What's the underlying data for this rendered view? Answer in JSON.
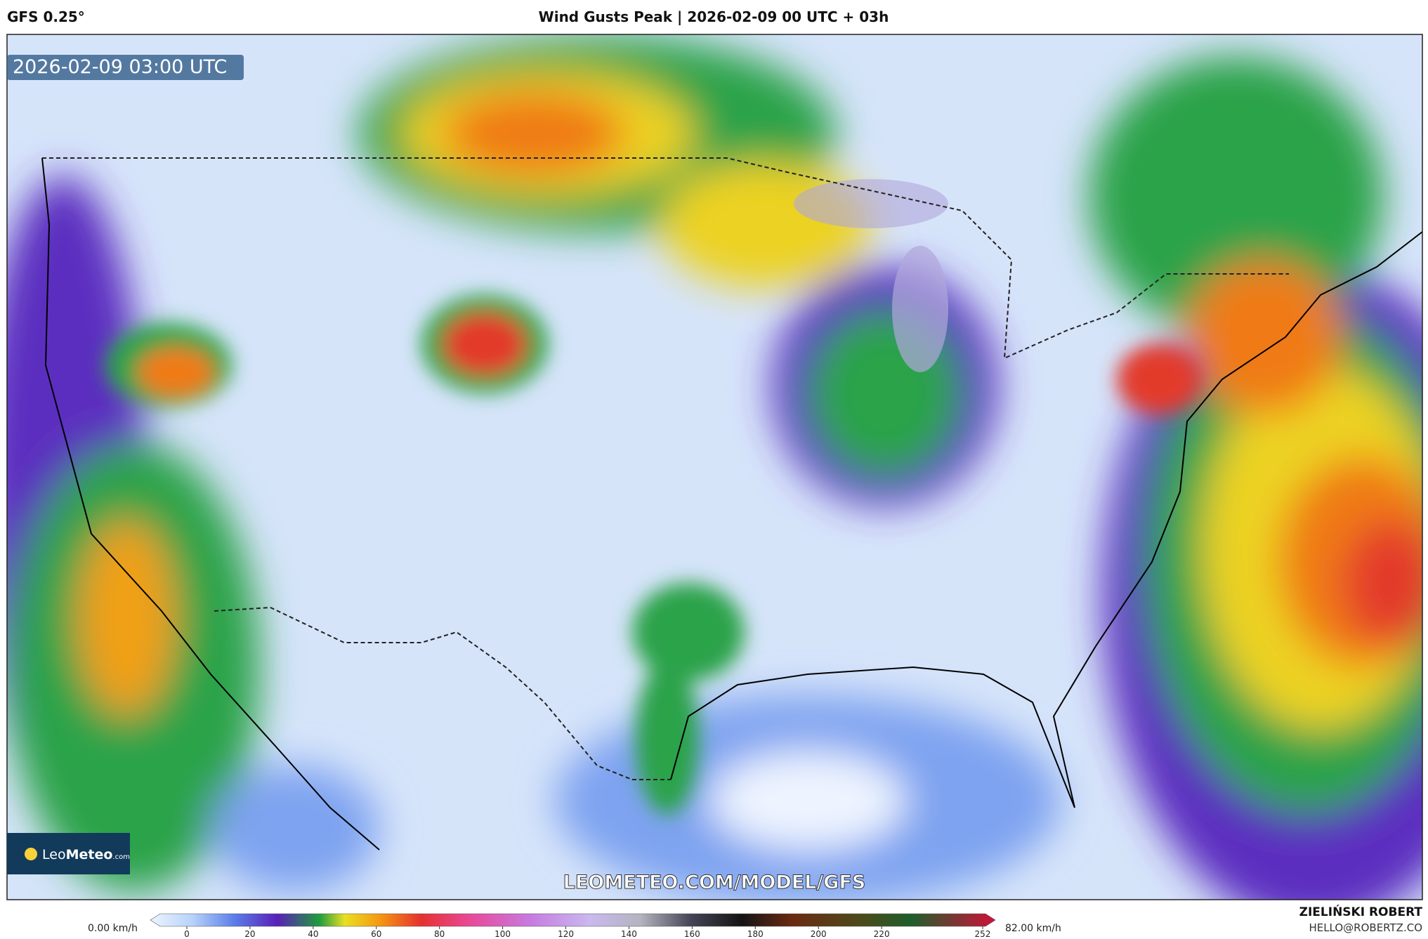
{
  "header": {
    "model": "GFS 0.25°",
    "title": "Wind Gusts Peak | 2026-02-09 00 UTC + 03h"
  },
  "map": {
    "timestamp": "2026-02-09 03:00 UTC",
    "watermark": "LEOMETEO.COM/MODEL/GFS",
    "logo": {
      "leo": "Leo",
      "meteo": "Meteo",
      "suffix": ".com"
    }
  },
  "colorbar": {
    "min_label": "0.00 km/h",
    "max_label": "82.00 km/h",
    "ticks": [
      0,
      20,
      40,
      60,
      80,
      100,
      120,
      140,
      160,
      180,
      200,
      220,
      252
    ],
    "range": [
      0,
      252
    ]
  },
  "footer": {
    "author": "ZIELIŃSKI ROBERT",
    "email": "HELLO@ROBERTZ.CO"
  }
}
